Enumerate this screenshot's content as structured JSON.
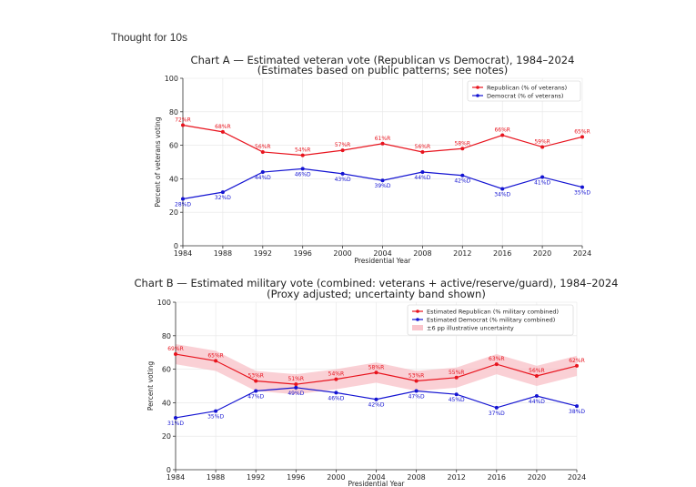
{
  "header": {
    "thought_label": "Thought for 10s"
  },
  "chart_data": [
    {
      "type": "line",
      "title": "Chart A — Estimated veteran vote (Republican vs Democrat), 1984–2024",
      "subtitle": "(Estimates based on public patterns; see notes)",
      "xlabel": "Presidential Year",
      "ylabel": "Percent of veterans voting",
      "x": [
        1984,
        1988,
        1992,
        1996,
        2000,
        2004,
        2008,
        2012,
        2016,
        2020,
        2024
      ],
      "ylim": [
        0,
        100
      ],
      "yticks": [
        0,
        20,
        40,
        60,
        80,
        100
      ],
      "grid": true,
      "legend_position": "top-right",
      "series": [
        {
          "name": "Republican (% of veterans)",
          "color": "#e8141e",
          "values": [
            72,
            68,
            56,
            54,
            57,
            61,
            56,
            58,
            66,
            59,
            65
          ],
          "labels": [
            "72%R",
            "68%R",
            "56%R",
            "54%R",
            "57%R",
            "61%R",
            "56%R",
            "58%R",
            "66%R",
            "59%R",
            "65%R"
          ]
        },
        {
          "name": "Democrat (% of veterans)",
          "color": "#1414d2",
          "values": [
            28,
            32,
            44,
            46,
            43,
            39,
            44,
            42,
            34,
            41,
            35
          ],
          "labels": [
            "28%D",
            "32%D",
            "44%D",
            "46%D",
            "43%D",
            "39%D",
            "44%D",
            "42%D",
            "34%D",
            "41%D",
            "35%D"
          ]
        }
      ]
    },
    {
      "type": "line",
      "title": "Chart B — Estimated military vote (combined: veterans + active/reserve/guard), 1984–2024",
      "subtitle": "(Proxy adjusted; uncertainty band shown)",
      "xlabel": "Presidential Year",
      "ylabel": "Percent voting",
      "x": [
        1984,
        1988,
        1992,
        1996,
        2000,
        2004,
        2008,
        2012,
        2016,
        2020,
        2024
      ],
      "ylim": [
        0,
        100
      ],
      "yticks": [
        0,
        20,
        40,
        60,
        80,
        100
      ],
      "grid": true,
      "legend_position": "top-right",
      "band_half_width": 6,
      "band_label": "±6 pp illustrative uncertainty",
      "band_color": "#f7b7bf",
      "series": [
        {
          "name": "Estimated Republican (% military combined)",
          "color": "#e8141e",
          "values": [
            69,
            65,
            53,
            51,
            54,
            58,
            53,
            55,
            63,
            56,
            62
          ],
          "labels": [
            "69%R",
            "65%R",
            "53%R",
            "51%R",
            "54%R",
            "58%R",
            "53%R",
            "55%R",
            "63%R",
            "56%R",
            "62%R"
          ]
        },
        {
          "name": "Estimated Democrat (% military combined)",
          "color": "#1414d2",
          "values": [
            31,
            35,
            47,
            49,
            46,
            42,
            47,
            45,
            37,
            44,
            38
          ],
          "labels": [
            "31%D",
            "35%D",
            "47%D",
            "49%D",
            "46%D",
            "42%D",
            "47%D",
            "45%D",
            "37%D",
            "44%D",
            "38%D"
          ]
        }
      ]
    }
  ]
}
